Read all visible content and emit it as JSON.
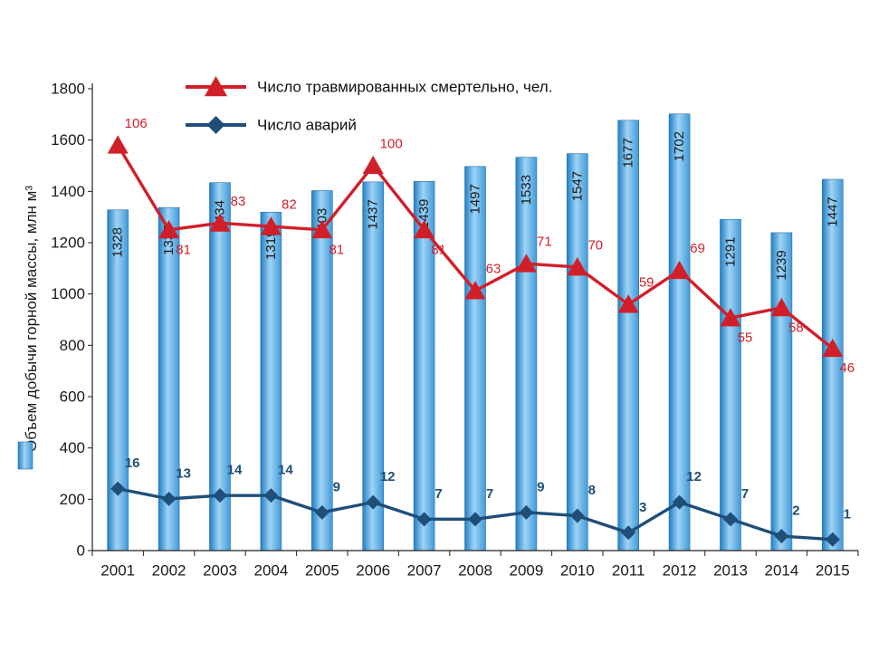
{
  "chart_data": {
    "type": "bar",
    "categories": [
      "2001",
      "2002",
      "2003",
      "2004",
      "2005",
      "2006",
      "2007",
      "2008",
      "2009",
      "2010",
      "2011",
      "2012",
      "2013",
      "2014",
      "2015"
    ],
    "ylabel": "Объем добычи горной массы, млн м³",
    "ylim": [
      0,
      1800
    ],
    "yticks": [
      0,
      200,
      400,
      600,
      800,
      1000,
      1200,
      1400,
      1600,
      1800
    ],
    "bars": {
      "values": [
        1328,
        1337,
        1434,
        1319,
        1403,
        1437,
        1439,
        1497,
        1533,
        1547,
        1677,
        1702,
        1291,
        1239,
        1447
      ],
      "color": "#4aa3df"
    },
    "series": [
      {
        "name": "Число травмированных смертельно, чел.",
        "labels": [
          106,
          81,
          83,
          82,
          81,
          100,
          81,
          63,
          71,
          70,
          59,
          69,
          55,
          58,
          46
        ],
        "color": "#d11f2a",
        "marker": "triangle"
      },
      {
        "name": "Число аварий",
        "labels": [
          16,
          13,
          14,
          14,
          9,
          12,
          7,
          7,
          9,
          8,
          3,
          12,
          7,
          2,
          1
        ],
        "color": "#1f4e79",
        "marker": "diamond"
      }
    ],
    "grid": false,
    "legend": "top-center"
  }
}
